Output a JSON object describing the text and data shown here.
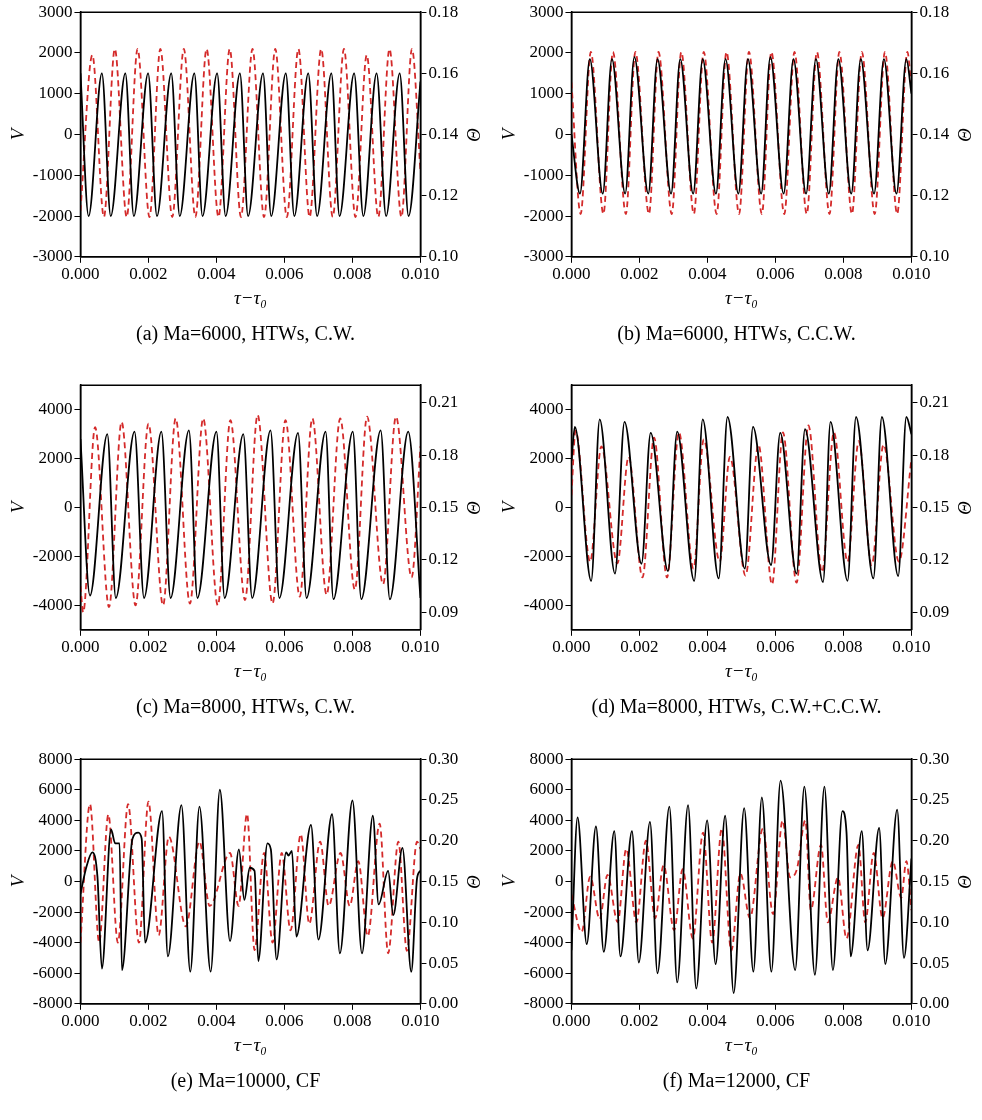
{
  "chart_data": [
    {
      "type": "line",
      "title": "(a) Ma=6000, HTWs, C.W.",
      "xlabel": "τ−τ₀",
      "ylabel": "V",
      "y2label": "Θ",
      "xlim": [
        0,
        0.01
      ],
      "xticks": [
        {
          "value": 0,
          "label": "0.000"
        },
        {
          "value": 0.002,
          "label": "0.002"
        },
        {
          "value": 0.004,
          "label": "0.004"
        },
        {
          "value": 0.006,
          "label": "0.006"
        },
        {
          "value": 0.008,
          "label": "0.008"
        },
        {
          "value": 0.01,
          "label": "0.010"
        }
      ],
      "ylim": [
        -3000,
        3000
      ],
      "yticks": [
        -3000,
        -2000,
        -1000,
        0,
        1000,
        2000,
        3000
      ],
      "y2lim": [
        0.1,
        0.18
      ],
      "y2ticks": [
        {
          "value": 0.1,
          "label": "0.10"
        },
        0.12,
        0.14,
        0.16,
        0.18
      ],
      "series": [
        {
          "color": "#000000",
          "line_style": "solid",
          "x": [
            0,
            0.00024,
            0.00063,
            0.00089,
            0.00132,
            0.00157,
            0.00199,
            0.00225,
            0.00267,
            0.00292,
            0.00335,
            0.00359,
            0.00402,
            0.00427,
            0.00469,
            0.00493,
            0.00537,
            0.00561,
            0.00604,
            0.00629,
            0.0067,
            0.00696,
            0.00738,
            0.00762,
            0.00805,
            0.00832,
            0.00871,
            0.00899,
            0.00939,
            0.00965,
            0.01
          ],
          "values": [
            1500,
            -2000,
            1500,
            -2000,
            1500,
            -2000,
            1500,
            -2000,
            1500,
            -2000,
            1500,
            -2000,
            1500,
            -2000,
            1500,
            -2000,
            1500,
            -2000,
            1500,
            -2000,
            1500,
            -2000,
            1500,
            -2000,
            1500,
            -2000,
            1500,
            -2000,
            1500,
            -2000,
            1300
          ]
        },
        {
          "color": "#d42a2a",
          "line_style": "dashed",
          "axis": "y2",
          "x": [
            0,
            0.00035,
            0.00069,
            0.00101,
            0.00136,
            0.00168,
            0.00203,
            0.00235,
            0.0027,
            0.00304,
            0.00338,
            0.00371,
            0.00406,
            0.00439,
            0.00472,
            0.00506,
            0.0054,
            0.00573,
            0.00607,
            0.00641,
            0.00674,
            0.00708,
            0.00742,
            0.00775,
            0.00809,
            0.00842,
            0.00876,
            0.00909,
            0.00944,
            0.00975,
            0.01
          ],
          "values": [
            0.115,
            0.166,
            0.113,
            0.168,
            0.113,
            0.168,
            0.113,
            0.168,
            0.113,
            0.168,
            0.113,
            0.168,
            0.113,
            0.168,
            0.113,
            0.168,
            0.113,
            0.168,
            0.113,
            0.168,
            0.113,
            0.168,
            0.113,
            0.168,
            0.113,
            0.166,
            0.113,
            0.168,
            0.113,
            0.168,
            0.128
          ]
        }
      ]
    },
    {
      "type": "line",
      "title": "(b) Ma=6000, HTWs, C.C.W.",
      "xlabel": "τ−τ₀",
      "ylabel": "V",
      "y2label": "Θ",
      "xlim": [
        0,
        0.01
      ],
      "xticks": [
        {
          "value": 0,
          "label": "0.000"
        },
        {
          "value": 0.002,
          "label": "0.002"
        },
        {
          "value": 0.004,
          "label": "0.004"
        },
        {
          "value": 0.006,
          "label": "0.006"
        },
        {
          "value": 0.008,
          "label": "0.008"
        },
        {
          "value": 0.01,
          "label": "0.010"
        }
      ],
      "ylim": [
        -3000,
        3000
      ],
      "yticks": [
        -3000,
        -2000,
        -1000,
        0,
        1000,
        2000,
        3000
      ],
      "y2lim": [
        0.1,
        0.18
      ],
      "y2ticks": [
        {
          "value": 0.1,
          "label": "0.10"
        },
        0.12,
        0.14,
        0.16,
        0.18
      ],
      "series": [
        {
          "color": "#000000",
          "line_style": "solid",
          "x": [
            0,
            0.00025,
            0.00054,
            0.00092,
            0.00119,
            0.00158,
            0.00185,
            0.00226,
            0.00253,
            0.00293,
            0.0032,
            0.00358,
            0.00386,
            0.00425,
            0.00453,
            0.00491,
            0.00519,
            0.00558,
            0.00585,
            0.00624,
            0.00653,
            0.0069,
            0.00719,
            0.00757,
            0.00785,
            0.00823,
            0.00851,
            0.0089,
            0.00919,
            0.00956,
            0.00985,
            0.01
          ],
          "values": [
            0,
            -1450,
            1850,
            -1450,
            1850,
            -1450,
            1900,
            -1450,
            1850,
            -1450,
            1850,
            -1450,
            1850,
            -1450,
            1850,
            -1450,
            1850,
            -1450,
            1900,
            -1450,
            1850,
            -1450,
            1850,
            -1450,
            1850,
            -1450,
            1850,
            -1450,
            1850,
            -1450,
            1850,
            1000
          ]
        },
        {
          "color": "#d42a2a",
          "line_style": "dashed",
          "axis": "y2",
          "x": [
            0,
            0.00027,
            0.00057,
            0.00094,
            0.00122,
            0.0016,
            0.00188,
            0.00228,
            0.00256,
            0.00295,
            0.00323,
            0.0036,
            0.00389,
            0.00427,
            0.00456,
            0.00493,
            0.00522,
            0.0056,
            0.00588,
            0.00626,
            0.00656,
            0.00692,
            0.00722,
            0.00759,
            0.00788,
            0.00825,
            0.00854,
            0.00892,
            0.00922,
            0.00958,
            0.00988,
            0.01
          ],
          "values": [
            0.157,
            0.114,
            0.167,
            0.114,
            0.167,
            0.114,
            0.167,
            0.114,
            0.167,
            0.114,
            0.167,
            0.114,
            0.167,
            0.114,
            0.167,
            0.114,
            0.167,
            0.114,
            0.167,
            0.114,
            0.167,
            0.114,
            0.167,
            0.114,
            0.167,
            0.114,
            0.167,
            0.114,
            0.167,
            0.114,
            0.167,
            0.155
          ]
        }
      ]
    },
    {
      "type": "line",
      "title": "(c) Ma=8000, HTWs, C.W.",
      "xlabel": "τ−τ₀",
      "ylabel": "V",
      "y2label": "Θ",
      "xlim": [
        0,
        0.01
      ],
      "xticks": [
        {
          "value": 0,
          "label": "0.000"
        },
        {
          "value": 0.002,
          "label": "0.002"
        },
        {
          "value": 0.004,
          "label": "0.004"
        },
        {
          "value": 0.006,
          "label": "0.006"
        },
        {
          "value": 0.008,
          "label": "0.008"
        },
        {
          "value": 0.01,
          "label": "0.010"
        }
      ],
      "ylim": [
        -5000,
        5000
      ],
      "yticks": [
        -4000,
        -2000,
        0,
        2000,
        4000
      ],
      "y2lim": [
        0.08,
        0.22
      ],
      "y2ticks": [
        0.09,
        0.12,
        0.15,
        0.18,
        0.21
      ],
      "series": [
        {
          "color": "#000000",
          "line_style": "solid",
          "x": [
            0,
            0.00028,
            0.00079,
            0.00104,
            0.00159,
            0.00187,
            0.00238,
            0.00265,
            0.00319,
            0.00344,
            0.004,
            0.00424,
            0.00479,
            0.00505,
            0.00559,
            0.00585,
            0.0064,
            0.00665,
            0.00721,
            0.00744,
            0.00801,
            0.00826,
            0.00883,
            0.0091,
            0.00964,
            0.01
          ],
          "values": [
            2800,
            -3600,
            3000,
            -3700,
            3100,
            -3700,
            3100,
            -3700,
            3150,
            -3700,
            3100,
            -3700,
            3000,
            -3700,
            3150,
            -3700,
            3050,
            -3700,
            3100,
            -3750,
            3100,
            -3750,
            3150,
            -3750,
            3100,
            -3700
          ]
        },
        {
          "color": "#d42a2a",
          "line_style": "dashed",
          "axis": "y2",
          "x": [
            0,
            8e-05,
            0.00043,
            0.00084,
            0.00121,
            0.00162,
            0.002,
            0.00243,
            0.0028,
            0.00322,
            0.00361,
            0.00404,
            0.00441,
            0.00484,
            0.00521,
            0.00565,
            0.00603,
            0.00645,
            0.00682,
            0.00724,
            0.00764,
            0.00807,
            0.00843,
            0.0089,
            0.00928,
            0.00974,
            0.01
          ],
          "values": [
            0.105,
            0.09,
            0.196,
            0.093,
            0.199,
            0.094,
            0.198,
            0.094,
            0.201,
            0.095,
            0.201,
            0.094,
            0.2,
            0.097,
            0.203,
            0.095,
            0.2,
            0.099,
            0.201,
            0.1,
            0.201,
            0.103,
            0.202,
            0.106,
            0.202,
            0.11,
            0.185
          ]
        }
      ]
    },
    {
      "type": "line",
      "title": "(d) Ma=8000, HTWs, C.W.+C.C.W.",
      "xlabel": "τ−τ₀",
      "ylabel": "V",
      "y2label": "Θ",
      "xlim": [
        0,
        0.01
      ],
      "xticks": [
        {
          "value": 0,
          "label": "0.000"
        },
        {
          "value": 0.002,
          "label": "0.002"
        },
        {
          "value": 0.004,
          "label": "0.004"
        },
        {
          "value": 0.006,
          "label": "0.006"
        },
        {
          "value": 0.008,
          "label": "0.008"
        },
        {
          "value": 0.01,
          "label": "0.010"
        }
      ],
      "ylim": [
        -5000,
        5000
      ],
      "yticks": [
        -4000,
        -2000,
        0,
        2000,
        4000
      ],
      "y2lim": [
        0.08,
        0.22
      ],
      "y2ticks": [
        0.09,
        0.12,
        0.15,
        0.18,
        0.21
      ],
      "series": [
        {
          "color": "#000000",
          "line_style": "solid",
          "x": [
            0,
            0.0001,
            0.00058,
            0.00083,
            0.00128,
            0.00156,
            0.00206,
            0.00233,
            0.00284,
            0.00311,
            0.00361,
            0.00386,
            0.00433,
            0.00459,
            0.0051,
            0.00534,
            0.00587,
            0.00614,
            0.00662,
            0.00687,
            0.0074,
            0.00762,
            0.00812,
            0.00837,
            0.00888,
            0.00913,
            0.00961,
            0.00985,
            0.01
          ],
          "values": [
            1900,
            3300,
            -3000,
            3600,
            -2700,
            3500,
            -2300,
            3050,
            -2600,
            3100,
            -3000,
            3600,
            -2900,
            3700,
            -2500,
            3300,
            -2350,
            3050,
            -2700,
            3200,
            -3050,
            3500,
            -3000,
            3700,
            -2900,
            3700,
            -2800,
            3700,
            3000
          ]
        },
        {
          "color": "#d42a2a",
          "line_style": "dashed",
          "axis": "y2",
          "x": [
            0,
            0.00012,
            0.00055,
            0.00088,
            0.00135,
            0.00168,
            0.00209,
            0.00243,
            0.00281,
            0.00316,
            0.00359,
            0.00389,
            0.00436,
            0.00466,
            0.00512,
            0.0055,
            0.0059,
            0.00622,
            0.00662,
            0.00697,
            0.00737,
            0.00772,
            0.00812,
            0.00845,
            0.00883,
            0.00918,
            0.00963,
            0.01
          ],
          "values": [
            0.157,
            0.194,
            0.119,
            0.185,
            0.118,
            0.179,
            0.11,
            0.19,
            0.11,
            0.193,
            0.115,
            0.189,
            0.119,
            0.179,
            0.111,
            0.186,
            0.106,
            0.193,
            0.107,
            0.197,
            0.113,
            0.193,
            0.119,
            0.188,
            0.117,
            0.186,
            0.119,
            0.178
          ]
        }
      ]
    },
    {
      "type": "line",
      "title": "(e) Ma=10000, CF",
      "xlabel": "τ−τ₀",
      "ylabel": "V",
      "y2label": "Θ",
      "xlim": [
        0,
        0.01
      ],
      "xticks": [
        {
          "value": 0,
          "label": "0.000"
        },
        {
          "value": 0.002,
          "label": "0.002"
        },
        {
          "value": 0.004,
          "label": "0.004"
        },
        {
          "value": 0.006,
          "label": "0.006"
        },
        {
          "value": 0.008,
          "label": "0.008"
        },
        {
          "value": 0.01,
          "label": "0.010"
        }
      ],
      "ylim": [
        -8000,
        8000
      ],
      "yticks": [
        -8000,
        -6000,
        -4000,
        -2000,
        0,
        2000,
        4000,
        6000,
        8000
      ],
      "y2lim": [
        0,
        0.3
      ],
      "y2ticks": [
        {
          "value": 0,
          "label": "0.00"
        },
        0.05,
        {
          "value": 0.1,
          "label": "0.10"
        },
        0.15,
        {
          "value": 0.2,
          "label": "0.20"
        },
        0.25,
        {
          "value": 0.3,
          "label": "0.30"
        }
      ],
      "series": [
        {
          "color": "#000000",
          "line_style": "solid",
          "x": [
            0,
            0.00018,
            0.00035,
            0.0005,
            0.00063,
            0.0009,
            0.00102,
            0.00115,
            0.00122,
            0.00153,
            0.0017,
            0.0018,
            0.0019,
            0.0024,
            0.00257,
            0.00297,
            0.00323,
            0.0035,
            0.00383,
            0.0041,
            0.0044,
            0.00466,
            0.00482,
            0.00498,
            0.00512,
            0.00523,
            0.0055,
            0.0056,
            0.00577,
            0.00605,
            0.00612,
            0.00622,
            0.00635,
            0.00678,
            0.007,
            0.0074,
            0.00763,
            0.008,
            0.00828,
            0.0086,
            0.00877,
            0.00905,
            0.0092,
            0.00947,
            0.00973,
            0.0099,
            0.01
          ],
          "values": [
            -800,
            1000,
            1900,
            300,
            -5700,
            3400,
            2500,
            2500,
            -5800,
            2800,
            3200,
            2800,
            -4000,
            4600,
            -4900,
            5000,
            -5900,
            4900,
            -5900,
            6000,
            -3900,
            2100,
            -1200,
            900,
            700,
            -5200,
            2500,
            2100,
            -5100,
            1900,
            1700,
            2000,
            -3600,
            3700,
            -3800,
            4400,
            -4700,
            5300,
            -4700,
            4300,
            -1500,
            700,
            -2200,
            2200,
            -5900,
            200,
            700
          ]
        },
        {
          "color": "#d42a2a",
          "line_style": "dashed",
          "axis": "y2",
          "x": [
            0,
            0.00028,
            0.00055,
            0.00082,
            0.0011,
            0.0014,
            0.00172,
            0.002,
            0.0023,
            0.0026,
            0.0031,
            0.0035,
            0.0038,
            0.0044,
            0.00465,
            0.0049,
            0.00512,
            0.0054,
            0.00565,
            0.00592,
            0.00618,
            0.00648,
            0.00673,
            0.00705,
            0.0073,
            0.00765,
            0.00792,
            0.00817,
            0.00845,
            0.0088,
            0.00905,
            0.00935,
            0.0096,
            0.0099,
            0.01
          ],
          "values": [
            0.075,
            0.245,
            0.075,
            0.232,
            0.075,
            0.245,
            0.075,
            0.248,
            0.084,
            0.205,
            0.095,
            0.199,
            0.12,
            0.185,
            0.12,
            0.233,
            0.066,
            0.185,
            0.075,
            0.185,
            0.09,
            0.208,
            0.098,
            0.199,
            0.12,
            0.185,
            0.12,
            0.175,
            0.083,
            0.221,
            0.062,
            0.199,
            0.065,
            0.199,
            0.19
          ]
        }
      ]
    },
    {
      "type": "line",
      "title": "(f) Ma=12000, CF",
      "xlabel": "τ−τ₀",
      "ylabel": "V",
      "y2label": "Θ",
      "xlim": [
        0,
        0.01
      ],
      "xticks": [
        {
          "value": 0,
          "label": "0.000"
        },
        {
          "value": 0.002,
          "label": "0.002"
        },
        {
          "value": 0.004,
          "label": "0.004"
        },
        {
          "value": 0.006,
          "label": "0.006"
        },
        {
          "value": 0.008,
          "label": "0.008"
        },
        {
          "value": 0.01,
          "label": "0.010"
        }
      ],
      "ylim": [
        -8000,
        8000
      ],
      "yticks": [
        -8000,
        -6000,
        -4000,
        -2000,
        0,
        2000,
        4000,
        6000,
        8000
      ],
      "y2lim": [
        0,
        0.3
      ],
      "y2ticks": [
        {
          "value": 0,
          "label": "0.00"
        },
        0.05,
        {
          "value": 0.1,
          "label": "0.10"
        },
        0.15,
        {
          "value": 0.2,
          "label": "0.20"
        },
        0.25,
        {
          "value": 0.3,
          "label": "0.30"
        }
      ],
      "series": [
        {
          "color": "#000000",
          "line_style": "solid",
          "x": [
            0,
            0.00018,
            0.00045,
            0.00072,
            0.00095,
            0.00126,
            0.00144,
            0.00178,
            0.00198,
            0.00231,
            0.00253,
            0.00288,
            0.00311,
            0.00343,
            0.00367,
            0.00399,
            0.00424,
            0.00452,
            0.00477,
            0.00508,
            0.00535,
            0.0056,
            0.00588,
            0.00615,
            0.00658,
            0.00685,
            0.00716,
            0.00744,
            0.00769,
            0.00797,
            0.00809,
            0.00821,
            0.00854,
            0.00871,
            0.00905,
            0.00923,
            0.00958,
            0.00978,
            0.01
          ],
          "values": [
            -4500,
            4200,
            -4100,
            3600,
            -4600,
            3300,
            -4900,
            3300,
            -5300,
            3900,
            -6000,
            4900,
            -6600,
            5000,
            -7000,
            4000,
            -5400,
            4300,
            -7300,
            4800,
            -5900,
            5500,
            -5900,
            6600,
            -5800,
            6200,
            -6100,
            6200,
            -5800,
            4600,
            3200,
            -4900,
            3300,
            -4500,
            3500,
            -5400,
            4700,
            -5000,
            1500
          ]
        },
        {
          "color": "#d42a2a",
          "line_style": "dashed",
          "axis": "y2",
          "x": [
            0,
            0.0003,
            0.00055,
            0.00083,
            0.00106,
            0.00136,
            0.00161,
            0.00191,
            0.00219,
            0.00246,
            0.00271,
            0.00302,
            0.00327,
            0.00357,
            0.00387,
            0.00414,
            0.00442,
            0.0047,
            0.00497,
            0.00525,
            0.00563,
            0.00593,
            0.00621,
            0.00643,
            0.00663,
            0.00688,
            0.00704,
            0.00734,
            0.00754,
            0.00784,
            0.00809,
            0.00844,
            0.00864,
            0.00889,
            0.00915,
            0.00945,
            0.0097,
            0.00985,
            0.01
          ],
          "values": [
            0.134,
            0.088,
            0.156,
            0.104,
            0.158,
            0.1,
            0.19,
            0.1,
            0.2,
            0.105,
            0.17,
            0.09,
            0.165,
            0.08,
            0.21,
            0.075,
            0.215,
            0.065,
            0.16,
            0.105,
            0.215,
            0.11,
            0.225,
            0.155,
            0.165,
            0.225,
            0.115,
            0.195,
            0.1,
            0.155,
            0.08,
            0.195,
            0.1,
            0.185,
            0.105,
            0.175,
            0.13,
            0.175,
            0.115
          ]
        }
      ]
    }
  ]
}
